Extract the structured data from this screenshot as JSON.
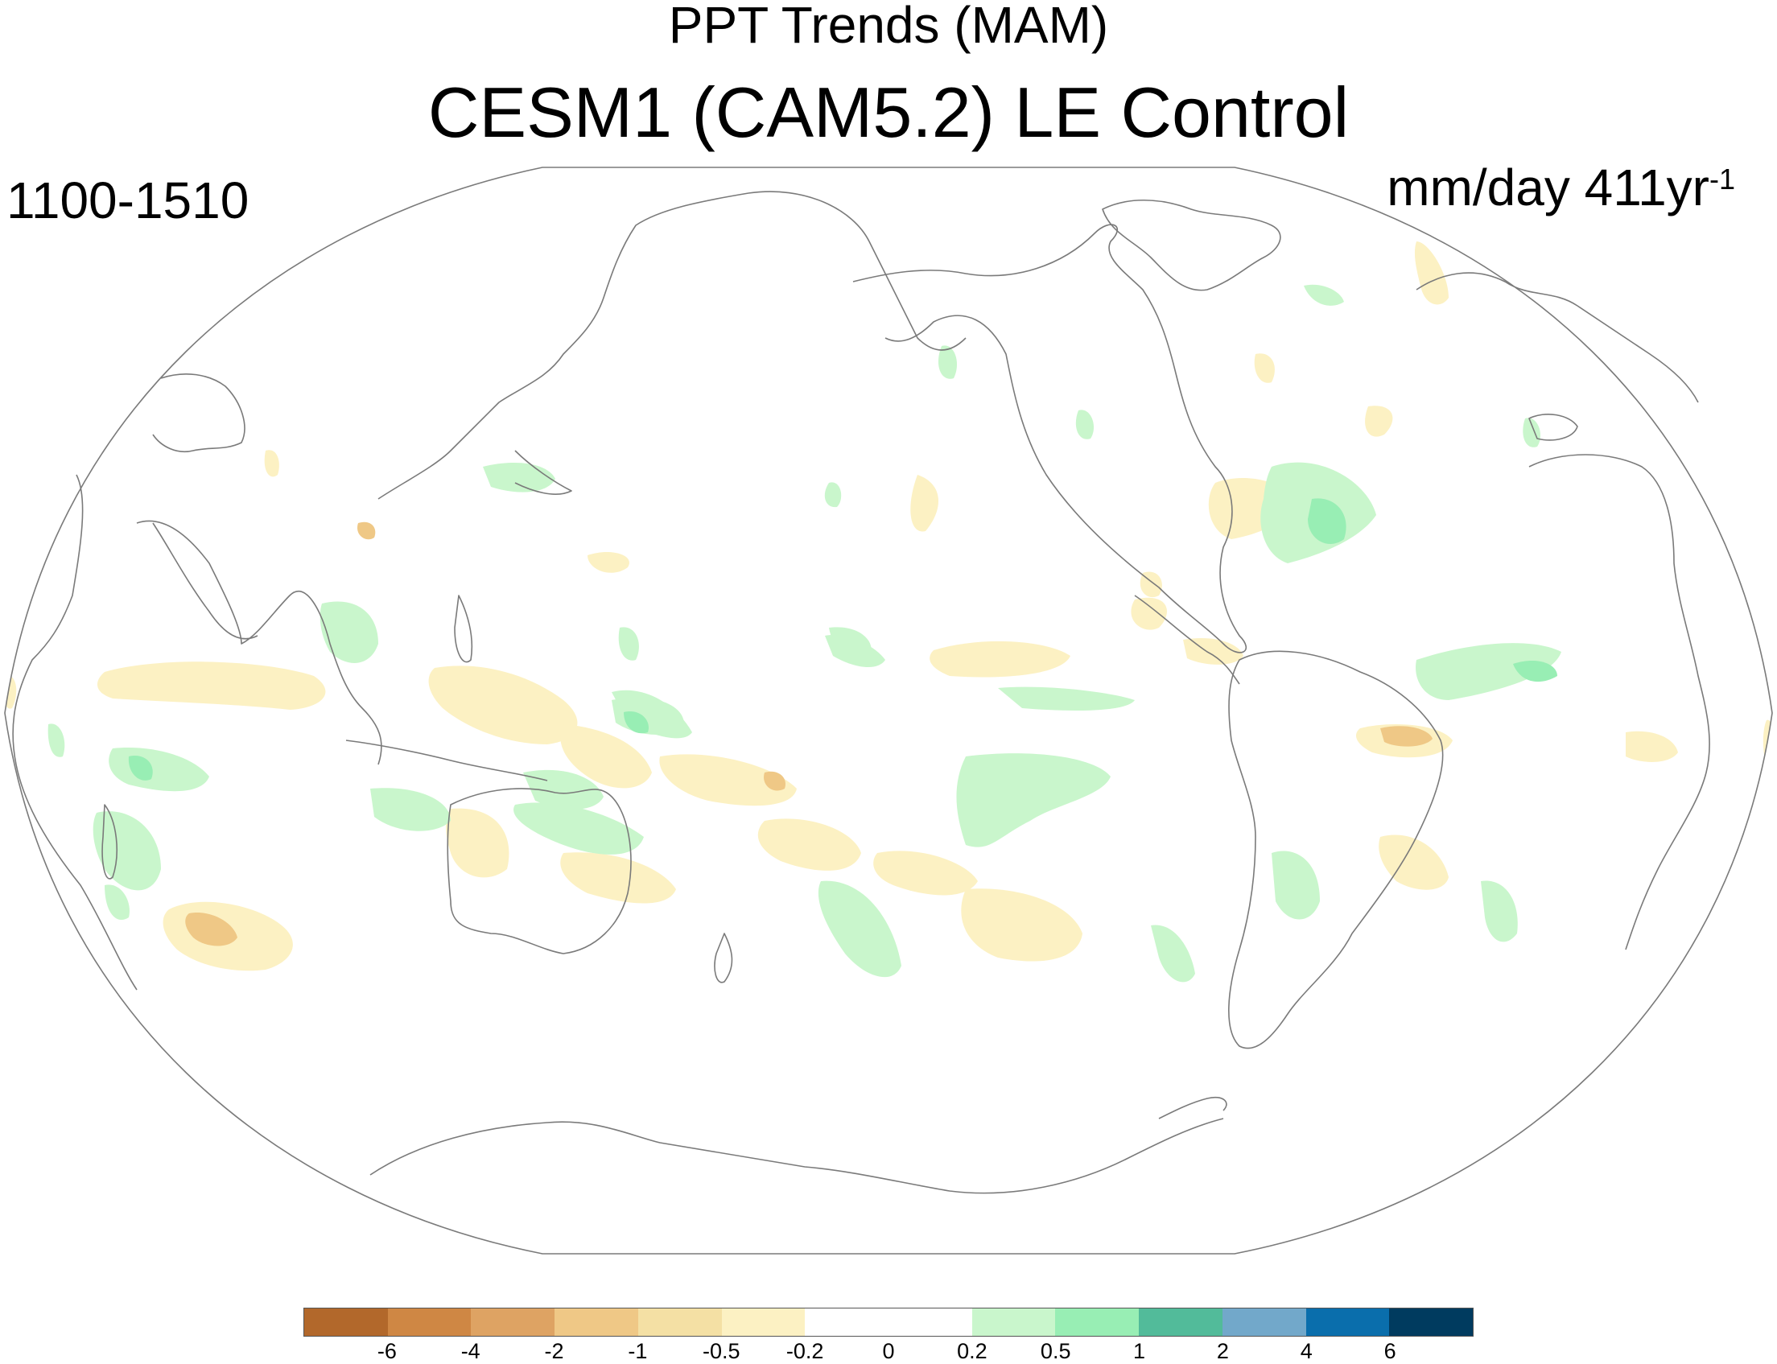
{
  "title": "PPT Trends (MAM)",
  "subtitle": "CESM1 (CAM5.2) LE Control",
  "left_string": "1100-1510",
  "units": {
    "base": "mm/day 411yr",
    "exponent": "-1"
  },
  "projection": "Robinson-like global, Pacific-centered",
  "colorbar": {
    "colors": [
      "#b2682b",
      "#cf8744",
      "#dea363",
      "#efc886",
      "#f4e0a4",
      "#fcf1c3",
      "#ffffff",
      "#ffffff",
      "#c9f6cc",
      "#98eeb4",
      "#52bb9a",
      "#72a8ca",
      "#0a6eac",
      "#003b5f"
    ],
    "labels": [
      "-6",
      "-4",
      "-2",
      "-1",
      "-0.5",
      "-0.2",
      "0",
      "0.2",
      "0.5",
      "1",
      "2",
      "4",
      "6"
    ]
  },
  "colors": {
    "land_outline": "#7a7a7a",
    "dry": "#fcf1c3",
    "dry_strong": "#efc886",
    "wet": "#c9f6cc",
    "wet_strong": "#98eeb4"
  }
}
